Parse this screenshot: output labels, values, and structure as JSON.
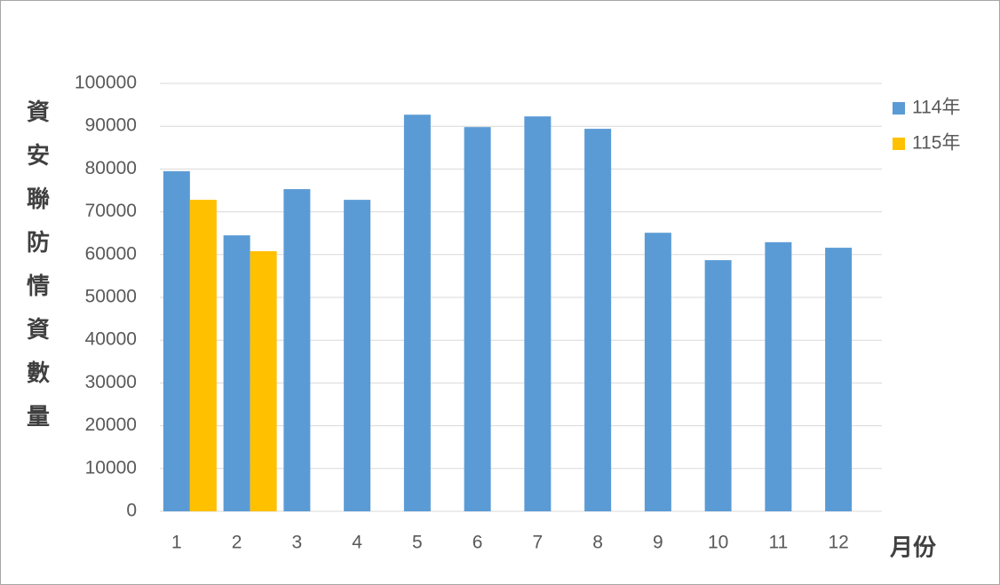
{
  "chart_data": {
    "type": "bar",
    "y_label": "資安聯防情資數量",
    "x_label": "月份",
    "categories": [
      "1",
      "2",
      "3",
      "4",
      "5",
      "6",
      "7",
      "8",
      "9",
      "10",
      "11",
      "12"
    ],
    "series": [
      {
        "name": "114年",
        "color": "#5b9bd5",
        "values": [
          79500,
          64500,
          75300,
          72800,
          92700,
          89800,
          92300,
          89400,
          65100,
          58700,
          62900,
          61600
        ]
      },
      {
        "name": "115年",
        "color": "#ffc000",
        "values": [
          72800,
          60800,
          null,
          null,
          null,
          null,
          null,
          null,
          null,
          null,
          null,
          null
        ]
      }
    ],
    "ylim": [
      0,
      100000
    ],
    "yticks": [
      0,
      10000,
      20000,
      30000,
      40000,
      50000,
      60000,
      70000,
      80000,
      90000,
      100000
    ],
    "grid": true,
    "legend": "right"
  }
}
